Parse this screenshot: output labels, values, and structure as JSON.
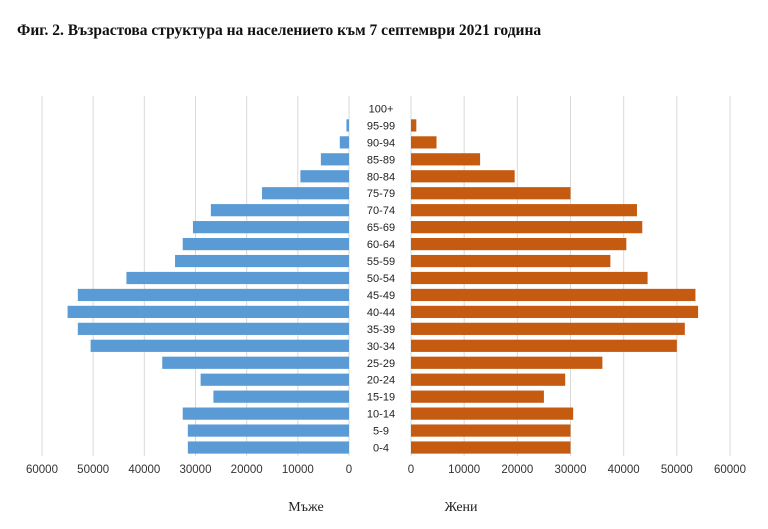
{
  "title": "Фиг. 2. Възрастова структура на населението към 7 септември 2021 година",
  "chart_data": {
    "type": "bar",
    "orientation": "horizontal-pyramid",
    "categories": [
      "0-4",
      "5-9",
      "10-14",
      "15-19",
      "20-24",
      "25-29",
      "30-34",
      "35-39",
      "40-44",
      "45-49",
      "50-54",
      "55-59",
      "60-64",
      "65-69",
      "70-74",
      "75-79",
      "80-84",
      "85-89",
      "90-94",
      "95-99",
      "100+"
    ],
    "series": [
      {
        "name": "Мъже",
        "color": "#5b9bd5",
        "values": [
          31500,
          31500,
          32500,
          26500,
          29000,
          36500,
          50500,
          53000,
          55000,
          53000,
          43500,
          34000,
          32500,
          30500,
          27000,
          17000,
          9500,
          5500,
          1800,
          500,
          0
        ]
      },
      {
        "name": "Жени",
        "color": "#c55a11",
        "values": [
          30000,
          30000,
          30500,
          25000,
          29000,
          36000,
          50000,
          51500,
          54000,
          53500,
          44500,
          37500,
          40500,
          43500,
          42500,
          30000,
          19500,
          13000,
          4800,
          1000,
          0
        ]
      }
    ],
    "left_axis_ticks": [
      "60000",
      "50000",
      "40000",
      "30000",
      "20000",
      "10000",
      "0"
    ],
    "right_axis_ticks": [
      "0",
      "10000",
      "20000",
      "30000",
      "40000",
      "50000",
      "60000"
    ],
    "xlim": [
      0,
      60000
    ],
    "grid": true
  }
}
